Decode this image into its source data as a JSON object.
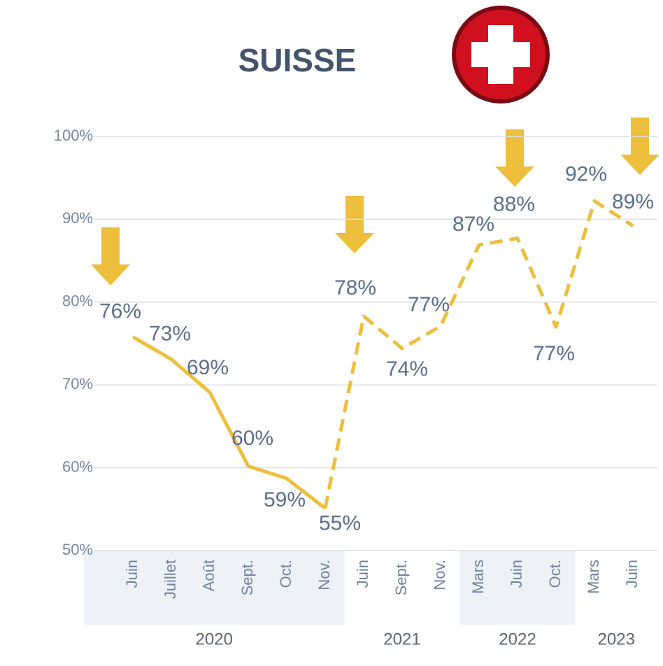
{
  "chart_data": {
    "type": "line",
    "title": "SUISSE",
    "categories": [
      "Juin",
      "Juillet",
      "Août",
      "Sept.",
      "Oct.",
      "Nov.",
      "Juin",
      "Sept.",
      "Nov.",
      "Mars",
      "Juin",
      "Oct.",
      "Mars",
      "Juin"
    ],
    "year_groups": [
      {
        "label": "2020",
        "count": 6
      },
      {
        "label": "2021",
        "count": 3
      },
      {
        "label": "2022",
        "count": 3
      },
      {
        "label": "2023",
        "count": 2
      }
    ],
    "series": [
      {
        "color": "#eebf3c",
        "dashed": false,
        "values": [
          75.8,
          73.1,
          69.1,
          60.2,
          58.7,
          55.1,
          null,
          null,
          null,
          null,
          null,
          null,
          null,
          null
        ],
        "value_labels": [
          "76%",
          "73%",
          "69%",
          "60%",
          "59%",
          "55%",
          null,
          null,
          null,
          null,
          null,
          null,
          null,
          null
        ]
      },
      {
        "color": "#eebf3c",
        "dashed": true,
        "values": [
          null,
          null,
          null,
          null,
          null,
          55.1,
          78.3,
          74.4,
          77.1,
          86.9,
          87.7,
          77.0,
          92.2,
          89.2
        ],
        "value_labels": [
          null,
          null,
          null,
          null,
          null,
          null,
          "78%",
          "74%",
          "77%",
          "87%",
          "88%",
          "77%",
          "92%",
          "89%"
        ]
      }
    ],
    "ylim": [
      50,
      100
    ],
    "yticks": [
      {
        "value": 50,
        "label": "50%"
      },
      {
        "value": 60,
        "label": "60%"
      },
      {
        "value": 70,
        "label": "70%"
      },
      {
        "value": 80,
        "label": "80%"
      },
      {
        "value": 90,
        "label": "90%"
      },
      {
        "value": 100,
        "label": "100%"
      }
    ],
    "grid": true
  }
}
